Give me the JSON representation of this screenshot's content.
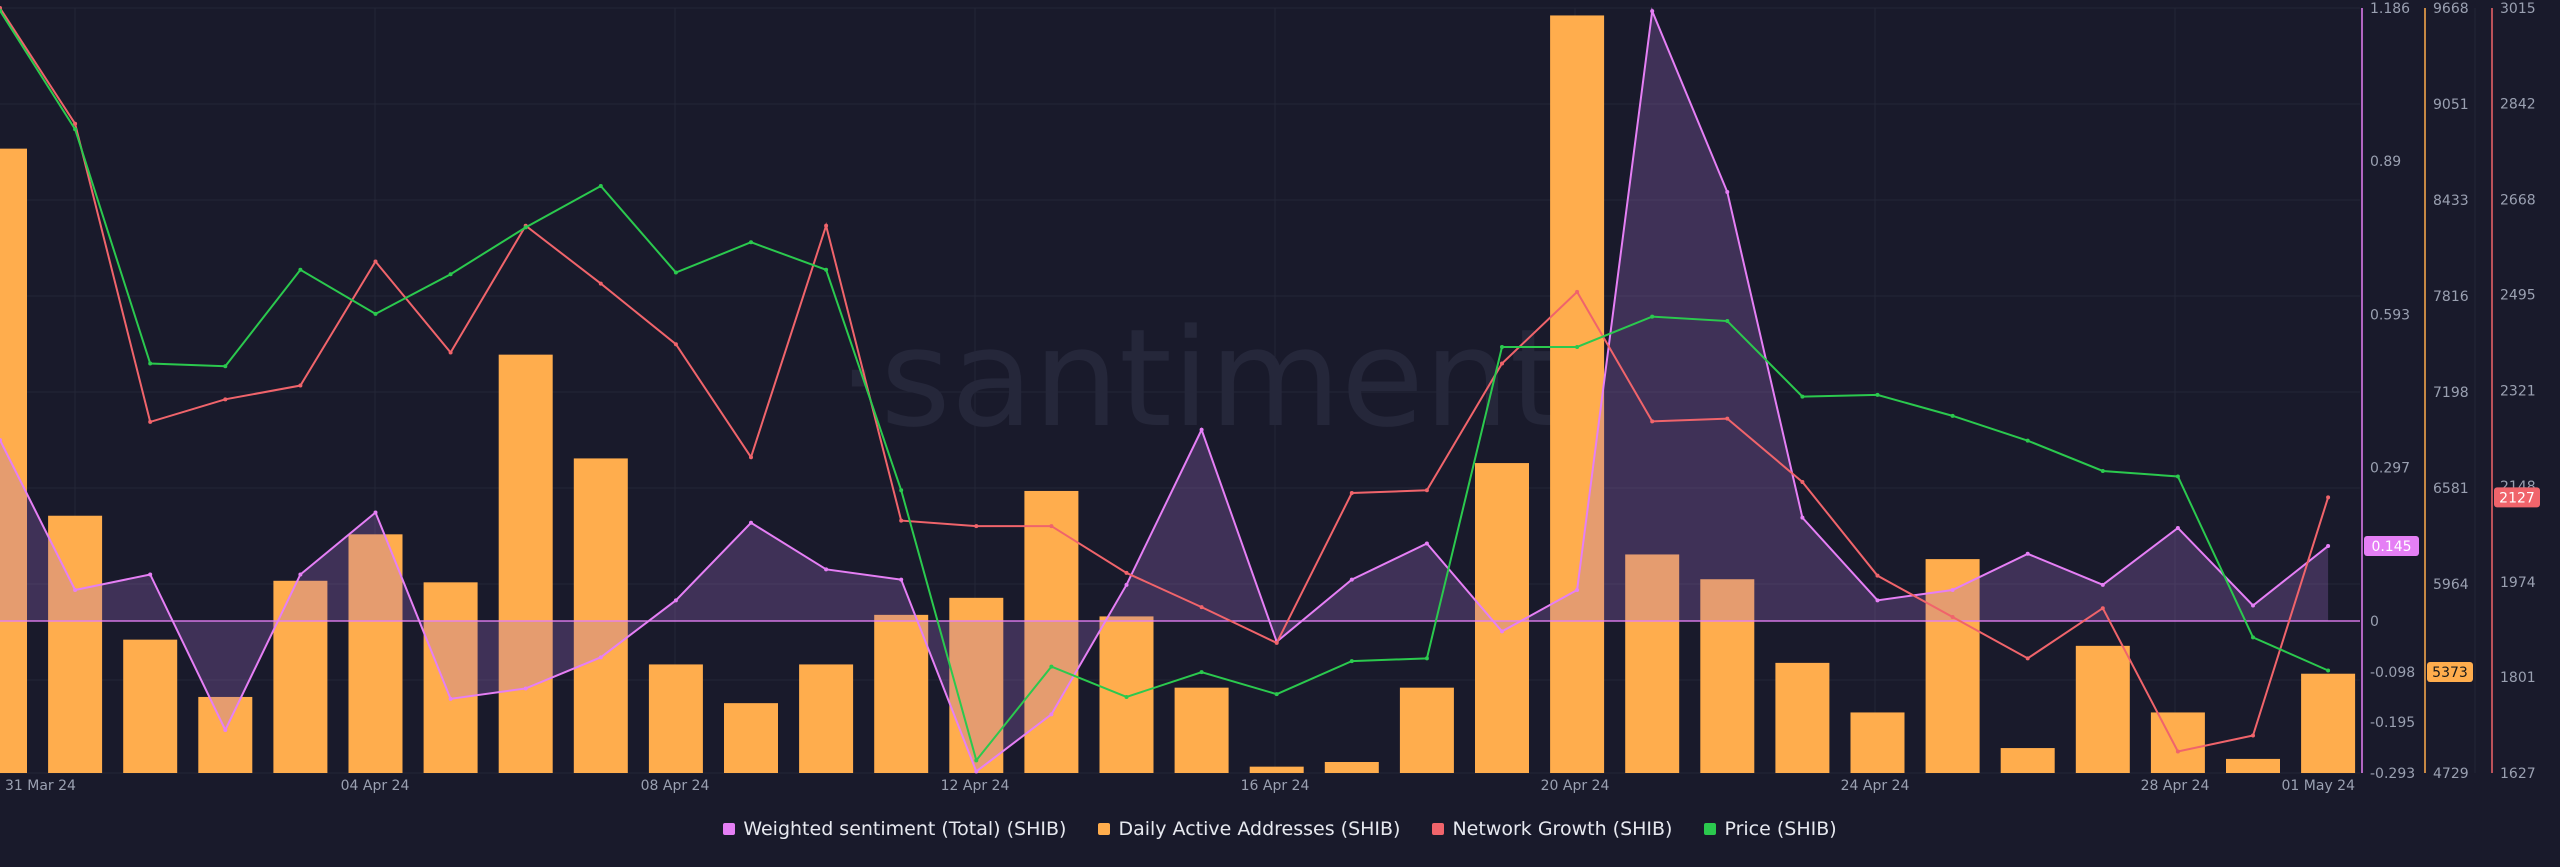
{
  "watermark": "·santiment",
  "colors": {
    "background": "#191a2b",
    "sentiment": "#e57ff5",
    "daa": "#ffad4d",
    "network": "#f0646b",
    "price": "#2bc94e",
    "grid": "#242637",
    "axis_text": "#9aa0b1"
  },
  "chart_data": {
    "type": "bar+line",
    "x_ticks": [
      "31 Mar 24",
      "04 Apr 24",
      "08 Apr 24",
      "12 Apr 24",
      "16 Apr 24",
      "20 Apr 24",
      "24 Apr 24",
      "28 Apr 24",
      "01 May 24"
    ],
    "x_dates": [
      "2024-03-31",
      "2024-04-01",
      "2024-04-02",
      "2024-04-03",
      "2024-04-04",
      "2024-04-05",
      "2024-04-06",
      "2024-04-07",
      "2024-04-08",
      "2024-04-09",
      "2024-04-10",
      "2024-04-11",
      "2024-04-12",
      "2024-04-13",
      "2024-04-14",
      "2024-04-15",
      "2024-04-16",
      "2024-04-17",
      "2024-04-18",
      "2024-04-19",
      "2024-04-20",
      "2024-04-21",
      "2024-04-22",
      "2024-04-23",
      "2024-04-24",
      "2024-04-25",
      "2024-04-26",
      "2024-04-27",
      "2024-04-28",
      "2024-04-29",
      "2024-04-30",
      "2024-05-01"
    ],
    "axes": {
      "sentiment": {
        "ticks": [
          "1.186",
          "0.89",
          "0.593",
          "0.297",
          "0",
          "-0.098",
          "-0.195",
          "-0.293"
        ],
        "range": [
          -0.293,
          1.186
        ],
        "last_value": "0.145"
      },
      "daa": {
        "ticks": [
          "9668",
          "9051",
          "8433",
          "7816",
          "7198",
          "6581",
          "5964",
          "5373",
          "4729"
        ],
        "range": [
          4729,
          9668
        ],
        "last_value": "5373"
      },
      "network": {
        "ticks": [
          "3015",
          "2842",
          "2668",
          "2495",
          "2321",
          "2148",
          "1974",
          "1801",
          "1627"
        ],
        "range": [
          1627,
          3015
        ],
        "last_value": "2127"
      }
    },
    "series": [
      {
        "name": "Weighted sentiment (Total) (SHIB)",
        "type": "area",
        "axis": "sentiment",
        "values": [
          0.35,
          0.06,
          0.09,
          -0.21,
          0.09,
          0.21,
          -0.15,
          -0.13,
          -0.07,
          0.04,
          0.19,
          0.1,
          0.08,
          -0.29,
          -0.18,
          0.07,
          0.37,
          -0.04,
          0.08,
          0.15,
          -0.02,
          0.06,
          1.18,
          0.83,
          0.2,
          0.04,
          0.06,
          0.13,
          0.07,
          0.18,
          0.03,
          0.145
        ]
      },
      {
        "name": "Daily Active Addresses (SHIB)",
        "type": "bar",
        "axis": "daa",
        "values": [
          8760,
          6390,
          5590,
          5220,
          5970,
          6270,
          5960,
          7430,
          6760,
          5430,
          5180,
          5430,
          5750,
          5860,
          6550,
          5740,
          5280,
          4770,
          4800,
          5280,
          6730,
          9620,
          6140,
          5980,
          5440,
          5120,
          6110,
          4890,
          5550,
          5120,
          4820,
          5370
        ]
      },
      {
        "name": "Network Growth (SHIB)",
        "type": "line",
        "axis": "network",
        "values": [
          3015,
          2805,
          2264,
          2305,
          2330,
          2555,
          2390,
          2620,
          2515,
          2405,
          2200,
          2620,
          2085,
          2075,
          2075,
          1990,
          1928,
          1863,
          2135,
          2140,
          2370,
          2500,
          2265,
          2270,
          2155,
          1985,
          1910,
          1835,
          1926,
          1666,
          1695,
          2127
        ]
      },
      {
        "name": "Price (SHIB)",
        "type": "line",
        "axis": "price",
        "values": [
          3010,
          2795,
          2370,
          2365,
          2540,
          2460,
          2532,
          2617,
          2692,
          2535,
          2590,
          2540,
          2140,
          1650,
          1820,
          1765,
          1810,
          1770,
          1830,
          1835,
          2400,
          2400,
          2455,
          2447,
          2310,
          2313,
          2275,
          2230,
          2175,
          2165,
          1873,
          1813
        ]
      }
    ],
    "legend": [
      "Weighted sentiment (Total) (SHIB)",
      "Daily Active Addresses (SHIB)",
      "Network Growth (SHIB)",
      "Price (SHIB)"
    ],
    "legend_position": "bottom-center",
    "grid": true
  }
}
